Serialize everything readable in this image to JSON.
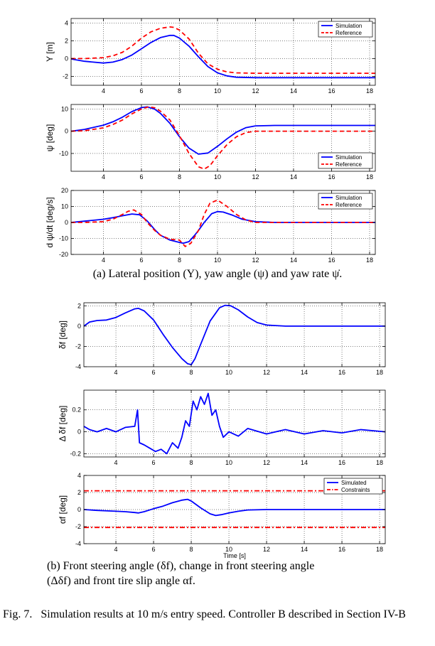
{
  "chart_data": [
    {
      "type": "line",
      "ylabel": "Y [m]",
      "xlim": [
        2.3,
        18.3
      ],
      "ylim": [
        -3,
        4.5
      ],
      "xticks": [
        4,
        6,
        8,
        10,
        12,
        14,
        16,
        18
      ],
      "yticks": [
        -2,
        0,
        2,
        4
      ],
      "grid": true,
      "legend": "top-right",
      "series": [
        {
          "name": "Simulation",
          "color": "#0000ff",
          "style": "solid",
          "x": [
            2.3,
            3,
            4,
            4.5,
            5,
            5.5,
            6,
            6.5,
            7,
            7.5,
            7.7,
            8,
            8.5,
            9,
            9.5,
            10,
            10.5,
            11,
            12,
            13,
            14,
            16,
            18.3
          ],
          "y": [
            -0.05,
            -0.3,
            -0.5,
            -0.4,
            -0.1,
            0.4,
            1.1,
            1.8,
            2.35,
            2.6,
            2.6,
            2.3,
            1.4,
            0.2,
            -0.9,
            -1.6,
            -1.95,
            -2.1,
            -2.15,
            -2.15,
            -2.15,
            -2.15,
            -2.15
          ]
        },
        {
          "name": "Reference",
          "color": "#ff0000",
          "style": "dashed",
          "x": [
            2.3,
            3,
            4,
            4.5,
            5,
            5.5,
            6,
            6.5,
            7,
            7.5,
            7.7,
            8,
            8.5,
            9,
            9.5,
            10,
            10.5,
            11,
            12,
            14,
            16,
            18.3
          ],
          "y": [
            0,
            0,
            0.1,
            0.3,
            0.7,
            1.4,
            2.3,
            3.0,
            3.4,
            3.55,
            3.5,
            3.2,
            2.2,
            0.6,
            -0.6,
            -1.2,
            -1.5,
            -1.6,
            -1.65,
            -1.65,
            -1.65,
            -1.65
          ]
        }
      ]
    },
    {
      "type": "line",
      "ylabel": "ψ [deg]",
      "xlim": [
        2.3,
        18.3
      ],
      "ylim": [
        -18,
        12
      ],
      "xticks": [
        4,
        6,
        8,
        10,
        12,
        14,
        16,
        18
      ],
      "yticks": [
        -10,
        0,
        10
      ],
      "grid": true,
      "legend": "bottom-right",
      "series": [
        {
          "name": "Simulation",
          "color": "#0000ff",
          "style": "solid",
          "x": [
            2.3,
            3,
            4,
            4.5,
            5,
            5.5,
            6,
            6.3,
            6.7,
            7,
            7.5,
            8,
            8.5,
            9,
            9.5,
            10,
            10.5,
            11,
            11.5,
            12,
            13,
            14,
            16,
            18.3
          ],
          "y": [
            0,
            0.8,
            2.7,
            4.2,
            6.3,
            8.8,
            10.6,
            10.9,
            9.9,
            8,
            3.5,
            -2.5,
            -7.6,
            -10.3,
            -9.8,
            -6.8,
            -3.4,
            -0.4,
            1.6,
            2.4,
            2.6,
            2.6,
            2.6,
            2.6
          ]
        },
        {
          "name": "Reference",
          "color": "#ff0000",
          "style": "dashed",
          "x": [
            2.3,
            3,
            4,
            4.5,
            5,
            5.5,
            6,
            6.4,
            6.7,
            7,
            7.5,
            8,
            8.5,
            9,
            9.3,
            9.6,
            10,
            10.5,
            11,
            11.5,
            12,
            14,
            18.3
          ],
          "y": [
            0,
            0.2,
            1.5,
            3,
            5,
            7.8,
            10,
            11,
            10.5,
            9,
            5,
            -2,
            -10,
            -16,
            -17,
            -15.5,
            -11,
            -6,
            -2.5,
            -0.6,
            0,
            0,
            0
          ]
        }
      ]
    },
    {
      "type": "line",
      "ylabel": "d ψ/dt [deg/s]",
      "xlim": [
        2.3,
        18.3
      ],
      "ylim": [
        -20,
        20
      ],
      "xticks": [
        4,
        6,
        8,
        10,
        12,
        14,
        16,
        18
      ],
      "yticks": [
        -20,
        -10,
        0,
        10,
        20
      ],
      "grid": true,
      "legend": "top-right",
      "series": [
        {
          "name": "Simulation",
          "color": "#0000ff",
          "style": "solid",
          "x": [
            2.3,
            3,
            4,
            4.5,
            5,
            5.5,
            5.9,
            6.3,
            6.7,
            7,
            7.5,
            8,
            8.2,
            8.5,
            8.8,
            9,
            9.3,
            9.7,
            10,
            10.3,
            10.8,
            11.3,
            12,
            13,
            14,
            18.3
          ],
          "y": [
            0,
            0.8,
            2,
            3,
            4.2,
            5.3,
            4.8,
            1,
            -4.5,
            -8,
            -11,
            -12.5,
            -13,
            -12,
            -8,
            -5,
            0,
            5.5,
            6.8,
            6.5,
            4.5,
            2,
            0.5,
            0,
            0,
            0
          ]
        },
        {
          "name": "Reference",
          "color": "#ff0000",
          "style": "dashed",
          "x": [
            2.3,
            3,
            4,
            4.5,
            5,
            5.3,
            5.6,
            6,
            6.3,
            6.7,
            7,
            7.5,
            8,
            8.3,
            8.6,
            9,
            9.3,
            9.6,
            10,
            10.5,
            11,
            11.5,
            12,
            18.3
          ],
          "y": [
            0,
            0,
            0.5,
            2,
            5,
            7,
            7.8,
            5,
            0,
            -5,
            -8,
            -10.5,
            -11,
            -15,
            -13,
            -5,
            5,
            12,
            14,
            10,
            5,
            1.5,
            0,
            0
          ]
        }
      ]
    },
    {
      "type": "line",
      "ylabel": "δf [deg]",
      "xlim": [
        2.3,
        18.3
      ],
      "ylim": [
        -4,
        2.3
      ],
      "xticks": [
        4,
        6,
        8,
        10,
        12,
        14,
        16,
        18
      ],
      "yticks": [
        -4,
        -2,
        0,
        2
      ],
      "grid": true,
      "series": [
        {
          "color": "#0000ff",
          "style": "solid",
          "x": [
            2.3,
            2.6,
            3,
            3.5,
            4,
            4.5,
            5,
            5.2,
            5.5,
            6,
            6.5,
            7,
            7.5,
            7.8,
            8,
            8.2,
            8.5,
            9,
            9.5,
            9.8,
            10.1,
            10.5,
            11,
            11.5,
            12,
            13,
            14,
            16,
            18.3
          ],
          "y": [
            0,
            0.4,
            0.55,
            0.6,
            0.85,
            1.3,
            1.7,
            1.75,
            1.5,
            0.6,
            -0.8,
            -2.1,
            -3.2,
            -3.7,
            -3.8,
            -3.2,
            -1.8,
            0.5,
            1.8,
            2.05,
            2.0,
            1.6,
            0.9,
            0.35,
            0.1,
            0,
            0,
            0,
            0
          ]
        }
      ]
    },
    {
      "type": "line",
      "ylabel": "Δ δf [deg]",
      "xlim": [
        2.3,
        18.3
      ],
      "ylim": [
        -0.23,
        0.38
      ],
      "xticks": [
        4,
        6,
        8,
        10,
        12,
        14,
        16,
        18
      ],
      "yticks": [
        -0.2,
        0,
        0.2
      ],
      "grid": true,
      "series": [
        {
          "color": "#0000ff",
          "style": "solid",
          "x": [
            2.3,
            2.6,
            3,
            3.5,
            4,
            4.5,
            5,
            5.15,
            5.25,
            5.5,
            5.8,
            6.1,
            6.4,
            6.7,
            7,
            7.3,
            7.5,
            7.7,
            7.9,
            8.1,
            8.3,
            8.5,
            8.7,
            8.9,
            9.1,
            9.3,
            9.5,
            9.7,
            10,
            10.5,
            11,
            12,
            13,
            14,
            15,
            16,
            17,
            18.3
          ],
          "y": [
            0.05,
            0.02,
            0.0,
            0.03,
            0.0,
            0.04,
            0.05,
            0.2,
            -0.1,
            -0.12,
            -0.15,
            -0.18,
            -0.16,
            -0.2,
            -0.1,
            -0.15,
            -0.05,
            0.1,
            0.05,
            0.28,
            0.2,
            0.32,
            0.25,
            0.35,
            0.15,
            0.2,
            0.05,
            -0.05,
            0.0,
            -0.04,
            0.03,
            -0.02,
            0.02,
            -0.02,
            0.01,
            -0.01,
            0.02,
            0.0
          ]
        }
      ]
    },
    {
      "type": "line",
      "ylabel": "αf [deg]",
      "xlabel": "Time [s]",
      "xlim": [
        2.3,
        18.3
      ],
      "ylim": [
        -4,
        4
      ],
      "xticks": [
        4,
        6,
        8,
        10,
        12,
        14,
        16,
        18
      ],
      "yticks": [
        -4,
        -2,
        0,
        2,
        4
      ],
      "grid": true,
      "legend": "top-right",
      "series": [
        {
          "name": "Simulated",
          "color": "#0000ff",
          "style": "solid",
          "x": [
            2.3,
            3,
            4,
            4.5,
            5,
            5.2,
            5.5,
            6,
            6.5,
            7,
            7.5,
            7.8,
            8,
            8.5,
            9,
            9.3,
            9.6,
            10,
            10.5,
            11,
            12,
            14,
            16,
            18.3
          ],
          "y": [
            0,
            -0.1,
            -0.2,
            -0.25,
            -0.35,
            -0.4,
            -0.25,
            0.1,
            0.4,
            0.8,
            1.1,
            1.2,
            1.0,
            0.2,
            -0.5,
            -0.7,
            -0.6,
            -0.4,
            -0.2,
            -0.05,
            0,
            0,
            0,
            0
          ]
        },
        {
          "name": "Constraints",
          "color": "#ff0000",
          "style": "dashdot",
          "x": [
            2.3,
            18.3
          ],
          "y": [
            2.2,
            2.2
          ]
        },
        {
          "color": "#ff0000",
          "style": "dashdot",
          "x": [
            2.3,
            18.3
          ],
          "y": [
            -2.1,
            -2.1
          ]
        }
      ]
    }
  ],
  "captions": {
    "a_prefix": "(a) Lateral position (Y), yaw angle (ψ) and yaw rate ψ̇.",
    "b_line1": "(b) Front steering angle (δf), change in front steering angle",
    "b_line2": "(Δδf) and front tire slip angle αf.",
    "fig_label": "Fig. 7.",
    "fig_text": "Simulation results at 10 m/s entry speed. Controller B described in Section IV-B"
  }
}
